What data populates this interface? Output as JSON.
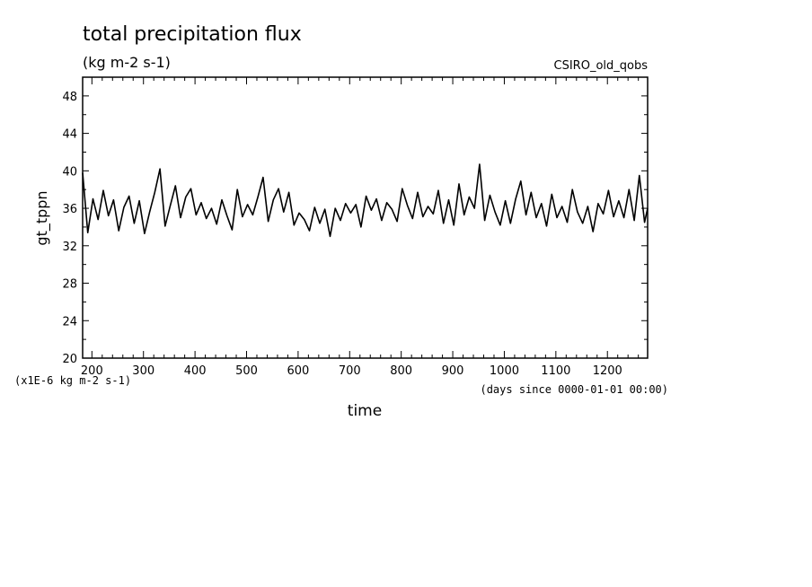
{
  "chart_data": {
    "type": "line",
    "title": "total precipitation flux",
    "subtitle": "(kg m-2 s-1)",
    "dataset_label": "CSIRO_old_qobs",
    "ylabel": "gt_tppn",
    "xlabel": "time",
    "y_scale_note": "(x1E-6 kg m-2 s-1)",
    "x_units_note": "(days since 0000-01-01 00:00)",
    "xlim": [
      182,
      1278
    ],
    "ylim": [
      20,
      50
    ],
    "x_ticks_major": [
      200,
      300,
      400,
      500,
      600,
      700,
      800,
      900,
      1000,
      1100,
      1200
    ],
    "y_ticks_major": [
      20,
      24,
      28,
      32,
      36,
      40,
      44,
      48
    ],
    "grid": false,
    "series": [
      {
        "x": [
          182,
          192,
          202,
          212,
          222,
          232,
          242,
          252,
          262,
          272,
          282,
          292,
          302,
          312,
          322,
          332,
          342,
          352,
          362,
          372,
          382,
          392,
          402,
          412,
          422,
          432,
          442,
          452,
          462,
          472,
          482,
          492,
          502,
          512,
          522,
          532,
          542,
          552,
          562,
          572,
          582,
          592,
          602,
          612,
          622,
          632,
          642,
          652,
          662,
          672,
          682,
          692,
          702,
          712,
          722,
          732,
          742,
          752,
          762,
          772,
          782,
          792,
          802,
          812,
          822,
          832,
          842,
          852,
          862,
          872,
          882,
          892,
          902,
          912,
          922,
          932,
          942,
          952,
          962,
          972,
          982,
          992,
          1002,
          1012,
          1022,
          1032,
          1042,
          1052,
          1062,
          1072,
          1082,
          1092,
          1102,
          1112,
          1122,
          1132,
          1142,
          1152,
          1162,
          1172,
          1182,
          1192,
          1202,
          1212,
          1222,
          1232,
          1242,
          1252,
          1262,
          1272,
          1278
        ],
        "y": [
          39.8,
          33.4,
          37.0,
          34.8,
          37.9,
          35.2,
          36.9,
          33.6,
          36.1,
          37.3,
          34.4,
          36.8,
          33.3,
          35.6,
          37.7,
          40.2,
          34.1,
          36.3,
          38.4,
          35.0,
          37.2,
          38.1,
          35.3,
          36.6,
          34.9,
          36.0,
          34.3,
          36.9,
          35.2,
          33.7,
          38.0,
          35.1,
          36.4,
          35.3,
          37.2,
          39.3,
          34.6,
          36.9,
          38.1,
          35.6,
          37.7,
          34.2,
          35.5,
          34.8,
          33.6,
          36.1,
          34.4,
          35.9,
          33.0,
          36.0,
          34.7,
          36.5,
          35.5,
          36.4,
          34.0,
          37.3,
          35.8,
          37.0,
          34.7,
          36.6,
          35.9,
          34.6,
          38.1,
          36.3,
          34.9,
          37.7,
          35.1,
          36.2,
          35.4,
          37.9,
          34.4,
          36.9,
          34.2,
          38.6,
          35.3,
          37.2,
          36.0,
          40.7,
          34.7,
          37.4,
          35.6,
          34.2,
          36.8,
          34.4,
          37.0,
          38.9,
          35.3,
          37.7,
          35.0,
          36.5,
          34.1,
          37.5,
          35.0,
          36.2,
          34.5,
          38.0,
          35.6,
          34.4,
          36.2,
          33.5,
          36.5,
          35.4,
          37.9,
          35.1,
          36.8,
          35.0,
          38.0,
          34.7,
          39.5,
          34.5,
          36.0
        ]
      }
    ]
  }
}
